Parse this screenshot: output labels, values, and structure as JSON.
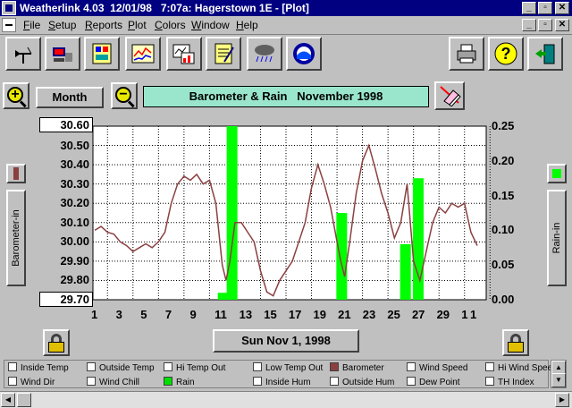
{
  "window": {
    "title": "Weatherlink 4.03  12/01/98   7:07a: Hagerstown 1E - [Plot]",
    "buttons": {
      "minimize": "_",
      "restore": "▫",
      "close": "✕"
    },
    "child_buttons": {
      "minimize": "_",
      "restore": "▫",
      "close": "✕"
    }
  },
  "menu": [
    "File",
    "Setup",
    "Reports",
    "Plot",
    "Colors",
    "Window",
    "Help"
  ],
  "toolbar": {
    "icons": [
      "wind-vane-icon",
      "station-computer-icon",
      "weather-center-icon",
      "graph-plot-icon",
      "summary-chart-icon",
      "notepad-icon",
      "rain-cloud-icon",
      "noaa-icon"
    ],
    "right_icons": [
      "printer-icon",
      "help-icon",
      "exit-door-icon"
    ]
  },
  "controls": {
    "zoom_in": "+",
    "zoom_out": "−",
    "span": "Month",
    "date": "Sun Nov 1, 1998"
  },
  "side": {
    "left_label": "Barometer-in",
    "right_label": "Rain-in",
    "left_swatch": "#8b4040",
    "right_swatch": "#00ff00"
  },
  "legend": {
    "items": [
      {
        "label": "Inside Temp",
        "color": "#ffffff"
      },
      {
        "label": "Outside Temp",
        "color": "#ffffff"
      },
      {
        "label": "Hi Temp Out",
        "color": "#ffffff"
      },
      {
        "label": "Low Temp Out",
        "color": "#ffffff"
      },
      {
        "label": "Barometer",
        "color": "#8b4040"
      },
      {
        "label": "Wind Speed",
        "color": "#ffffff"
      },
      {
        "label": "Hi Wind Speed",
        "color": "#ffffff"
      },
      {
        "label": "Wind Dir",
        "color": "#ffffff"
      },
      {
        "label": "Wind Chill",
        "color": "#ffffff"
      },
      {
        "label": "Rain",
        "color": "#00e000"
      },
      {
        "label": "Inside Hum",
        "color": "#ffffff"
      },
      {
        "label": "Outside Hum",
        "color": "#ffffff"
      },
      {
        "label": "Dew Point",
        "color": "#ffffff"
      },
      {
        "label": "TH Index",
        "color": "#ffffff"
      }
    ]
  },
  "chart_data": {
    "type": "line",
    "title": "Barometer & Rain   November 1998",
    "grid": true,
    "x_ticks": [
      "1",
      "3",
      "5",
      "7",
      "9",
      "11",
      "13",
      "15",
      "17",
      "19",
      "21",
      "23",
      "25",
      "27",
      "29",
      "1",
      "1"
    ],
    "left_axis": {
      "label": "Barometer-in",
      "top_label": "30.60",
      "bottom_label": "29.70",
      "ticks": [
        "30.50",
        "30.40",
        "30.30",
        "30.20",
        "30.10",
        "30.00",
        "29.90",
        "29.80"
      ],
      "ylim": [
        29.7,
        30.6
      ]
    },
    "right_axis": {
      "label": "Rain-in",
      "ticks": [
        "0.25",
        "0.20",
        "0.15",
        "0.10",
        "0.05",
        "0.00"
      ],
      "ylim": [
        0,
        0.25
      ]
    },
    "series": [
      {
        "name": "Barometer",
        "kind": "line",
        "color": "#8b4040",
        "x": [
          1,
          1.5,
          2,
          2.5,
          3,
          3.5,
          4,
          4.5,
          5,
          5.5,
          6,
          6.5,
          7,
          7.5,
          8,
          8.5,
          9,
          9.5,
          10,
          10.5,
          11,
          11.3,
          11.6,
          12,
          12.5,
          13,
          13.5,
          14,
          14.5,
          15,
          15.5,
          16,
          16.5,
          17,
          17.5,
          18,
          18.5,
          19,
          19.5,
          20,
          20.3,
          20.6,
          21,
          21.5,
          22,
          22.5,
          23,
          23.5,
          24,
          24.5,
          25,
          25.5,
          26,
          26.5,
          27,
          27.5,
          28,
          28.5,
          29,
          29.5,
          30,
          30.5,
          31
        ],
        "values": [
          30.06,
          30.08,
          30.05,
          30.04,
          30.0,
          29.98,
          29.95,
          29.97,
          29.99,
          29.97,
          30.0,
          30.05,
          30.2,
          30.3,
          30.34,
          30.32,
          30.35,
          30.3,
          30.32,
          30.2,
          29.88,
          29.8,
          29.9,
          30.1,
          30.1,
          30.05,
          30.0,
          29.85,
          29.74,
          29.72,
          29.8,
          29.85,
          29.9,
          30.0,
          30.1,
          30.28,
          30.4,
          30.3,
          30.18,
          30.0,
          29.9,
          29.82,
          30.0,
          30.25,
          30.42,
          30.5,
          30.38,
          30.25,
          30.15,
          30.02,
          30.1,
          30.3,
          29.9,
          29.8,
          29.95,
          30.1,
          30.18,
          30.15,
          30.2,
          30.18,
          30.2,
          30.05,
          29.98
        ]
      },
      {
        "name": "Rain",
        "kind": "bar",
        "color": "#00ff00",
        "x": [
          11,
          11.7,
          20.3,
          25.3,
          26.3
        ],
        "values": [
          0.01,
          0.25,
          0.125,
          0.08,
          0.175
        ]
      }
    ]
  }
}
